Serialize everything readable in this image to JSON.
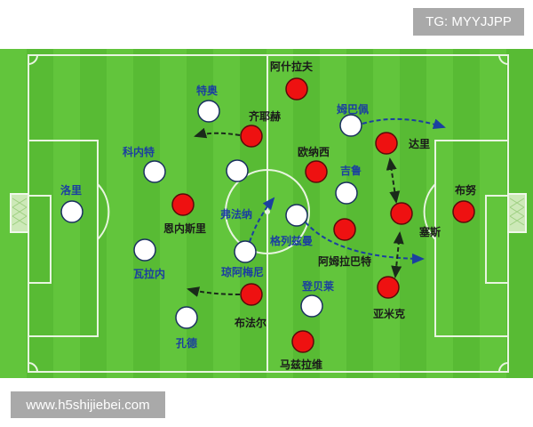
{
  "watermark_top": "TG: MYYJJPP",
  "watermark_bottom": "www.h5shijiebei.com",
  "colors": {
    "pitch": "#5fc23a",
    "white_team": "#ffffff",
    "red_team": "#ee1111",
    "white_team_label": "#1b3fa0",
    "red_team_label": "#1a1a1a"
  },
  "white_team": [
    "洛里",
    "特奥",
    "科内特",
    "弗法纳",
    "瓦拉内",
    "琼阿梅尼",
    "孔德",
    "格列兹曼",
    "吉鲁",
    "姆巴佩",
    "登贝莱"
  ],
  "red_team": [
    "阿什拉夫",
    "齐耶赫",
    "恩内斯里",
    "布法尔",
    "马兹拉维",
    "欧纳西",
    "阿姆拉巴特",
    "达里",
    "塞斯",
    "亚米克",
    "布努"
  ]
}
